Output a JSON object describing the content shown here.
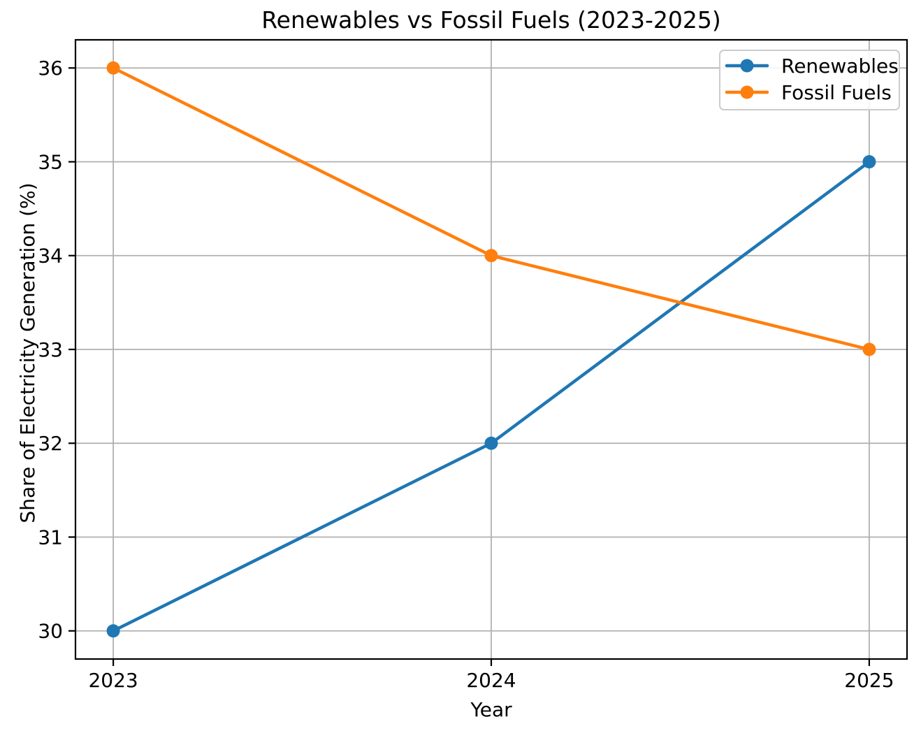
{
  "figure": {
    "background": "#ffffff"
  },
  "chart_data": {
    "type": "line",
    "title": "Renewables vs Fossil Fuels (2023-2025)",
    "xlabel": "Year",
    "ylabel": "Share of Electricity Generation (%)",
    "x": [
      2023,
      2024,
      2025
    ],
    "xtick_labels": [
      "2023",
      "2024",
      "2025"
    ],
    "yticks": [
      30,
      31,
      32,
      33,
      34,
      35,
      36
    ],
    "ytick_labels": [
      "30",
      "31",
      "32",
      "33",
      "34",
      "35",
      "36"
    ],
    "xlim": [
      2022.9,
      2025.1
    ],
    "ylim": [
      29.7,
      36.3
    ],
    "grid": true,
    "grid_color": "#b0b0b0",
    "axis_color": "#000000",
    "text_color": "#000000",
    "legend": {
      "position": "upper-right",
      "background": "#ffffff",
      "border_color": "#cccccc",
      "entries": [
        "Renewables",
        "Fossil Fuels"
      ]
    },
    "series": [
      {
        "name": "Renewables",
        "color": "#1f77b4",
        "values": [
          30,
          32,
          35
        ]
      },
      {
        "name": "Fossil Fuels",
        "color": "#ff7f0e",
        "values": [
          36,
          34,
          33
        ]
      }
    ]
  }
}
